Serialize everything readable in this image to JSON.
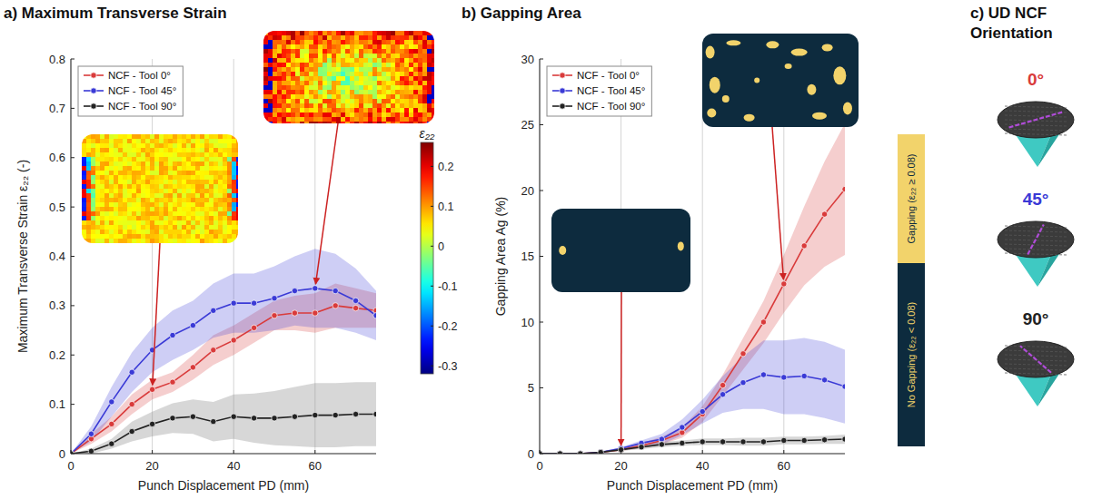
{
  "chart_data": [
    {
      "type": "line",
      "title": "a) Maximum Transverse Strain",
      "x_label": "Punch Displacement PD (mm)",
      "y_label": "Maximum Transverse Strain ε₂₂ (-)",
      "x": [
        0,
        5,
        10,
        15,
        20,
        25,
        30,
        35,
        40,
        45,
        50,
        55,
        60,
        65,
        70,
        75
      ],
      "xlim": [
        0,
        75
      ],
      "xticks": [
        0,
        20,
        40,
        60
      ],
      "ylim": [
        0,
        0.8
      ],
      "yticks": [
        0,
        0.1,
        0.2,
        0.3,
        0.4,
        0.5,
        0.6,
        0.7,
        0.8
      ],
      "grid": "x",
      "legend": "upper left",
      "series": [
        {
          "name": "NCF - Tool 0°",
          "color": "#d93b3b",
          "marker": "circle",
          "values": [
            0,
            0.03,
            0.06,
            0.1,
            0.13,
            0.145,
            0.175,
            0.21,
            0.23,
            0.255,
            0.28,
            0.285,
            0.285,
            0.3,
            0.295,
            0.29
          ],
          "error": [
            0,
            0.01,
            0.015,
            0.02,
            0.02,
            0.02,
            0.025,
            0.03,
            0.03,
            0.03,
            0.03,
            0.035,
            0.04,
            0.045,
            0.04,
            0.035
          ]
        },
        {
          "name": "NCF - Tool 45°",
          "color": "#3a3ad6",
          "marker": "circle",
          "values": [
            0,
            0.04,
            0.105,
            0.165,
            0.21,
            0.24,
            0.26,
            0.29,
            0.305,
            0.305,
            0.315,
            0.33,
            0.335,
            0.33,
            0.31,
            0.28
          ],
          "error": [
            0,
            0.015,
            0.03,
            0.04,
            0.045,
            0.05,
            0.05,
            0.055,
            0.06,
            0.06,
            0.065,
            0.07,
            0.08,
            0.075,
            0.065,
            0.05
          ]
        },
        {
          "name": "NCF - Tool 90°",
          "color": "#222222",
          "marker": "circle",
          "values": [
            0,
            0.005,
            0.02,
            0.045,
            0.06,
            0.072,
            0.075,
            0.065,
            0.075,
            0.072,
            0.072,
            0.075,
            0.078,
            0.078,
            0.08,
            0.08
          ],
          "error": [
            0,
            0.005,
            0.01,
            0.02,
            0.025,
            0.03,
            0.035,
            0.04,
            0.045,
            0.05,
            0.055,
            0.06,
            0.065,
            0.065,
            0.065,
            0.065
          ]
        }
      ],
      "color_bar": {
        "label": "ε₂₂",
        "range": [
          -0.32,
          0.26
        ],
        "ticks": [
          -0.3,
          -0.2,
          -0.1,
          0,
          0.1,
          0.2
        ]
      }
    },
    {
      "type": "line",
      "title": "b) Gapping Area",
      "x_label": "Punch Displacement PD (mm)",
      "y_label": "Gapping Area Ag (%)",
      "x": [
        0,
        5,
        10,
        15,
        20,
        25,
        30,
        35,
        40,
        45,
        50,
        55,
        60,
        65,
        70,
        75
      ],
      "xlim": [
        0,
        75
      ],
      "xticks": [
        0,
        20,
        40,
        60
      ],
      "ylim": [
        0,
        30
      ],
      "yticks": [
        0,
        5,
        10,
        15,
        20,
        25,
        30
      ],
      "grid": "x",
      "legend": "upper left",
      "series": [
        {
          "name": "NCF - Tool 0°",
          "color": "#d93b3b",
          "marker": "circle",
          "values": [
            0,
            0,
            0,
            0.1,
            0.3,
            0.6,
            1.0,
            1.6,
            3.0,
            5.2,
            7.6,
            10.0,
            12.9,
            15.8,
            18.2,
            20.1
          ],
          "error": [
            0,
            0,
            0,
            0.05,
            0.1,
            0.2,
            0.3,
            0.4,
            0.6,
            0.8,
            1.2,
            1.6,
            2.2,
            3.0,
            4.0,
            5.0
          ]
        },
        {
          "name": "NCF - Tool 45°",
          "color": "#3a3ad6",
          "marker": "circle",
          "values": [
            0,
            0,
            0,
            0.1,
            0.4,
            0.8,
            1.1,
            2.0,
            3.2,
            4.5,
            5.4,
            6.0,
            5.8,
            5.9,
            5.6,
            5.1
          ],
          "error": [
            0,
            0,
            0,
            0.05,
            0.1,
            0.2,
            0.4,
            0.6,
            0.9,
            1.4,
            2.0,
            2.6,
            2.8,
            2.9,
            2.9,
            2.8
          ]
        },
        {
          "name": "NCF - Tool 90°",
          "color": "#222222",
          "marker": "circle",
          "values": [
            0,
            0,
            0,
            0.1,
            0.3,
            0.5,
            0.7,
            0.8,
            0.9,
            0.9,
            0.9,
            0.9,
            1.0,
            1.0,
            1.05,
            1.1
          ],
          "error": [
            0,
            0,
            0,
            0.05,
            0.1,
            0.15,
            0.2,
            0.2,
            0.25,
            0.25,
            0.3,
            0.3,
            0.3,
            0.3,
            0.3,
            0.35
          ]
        }
      ],
      "gapping_key": [
        {
          "label": "Gapping (ε₂₂ ≥ 0.08)",
          "color": "#f2d36b"
        },
        {
          "label": "No Gapping (ε₂₂ < 0.08)",
          "color": "#0d2b3e"
        }
      ]
    }
  ],
  "orientation_panel": {
    "title": "c) UD NCF Orientation",
    "orientations": [
      {
        "label": "0°",
        "angle": 0,
        "color": "#d93b3b"
      },
      {
        "label": "45°",
        "angle": 45,
        "color": "#3a3ad6"
      },
      {
        "label": "90°",
        "angle": 90,
        "color": "#222222"
      }
    ]
  }
}
